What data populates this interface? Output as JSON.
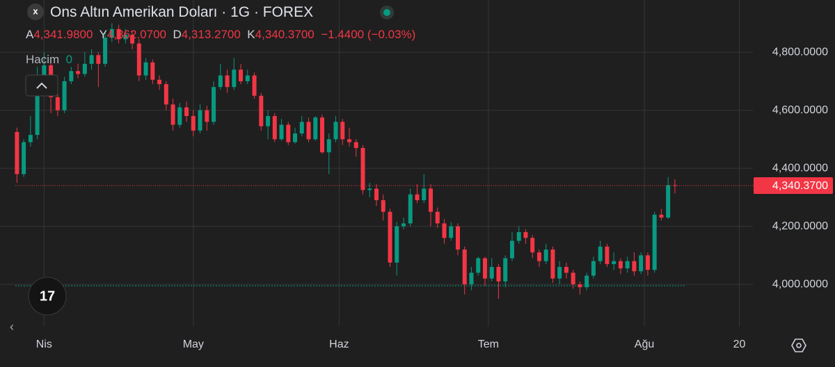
{
  "chart_data": {
    "type": "candlestick",
    "title": "Ons Altın Amerikan Doları · 1G · FOREX",
    "ohlc_legend": [
      {
        "name": "A",
        "value": {
          "value": 4341.98,
          "label": "4,341.9800"
        }
      },
      {
        "name": "Y",
        "value": {
          "value": 4362.07,
          "label": "4,362.0700"
        }
      },
      {
        "name": "D",
        "value": {
          "value": 4313.27,
          "label": "4,313.2700"
        }
      },
      {
        "name": "K",
        "value": {
          "value": 4340.37,
          "label": "4,340.3700"
        }
      }
    ],
    "change": {
      "value": -1.44,
      "label": "−1.4400"
    },
    "change_percent": {
      "value": -0.03,
      "label": "(−0.03%)"
    },
    "volume_label": "Hacim",
    "volume": 0,
    "last_price": {
      "value": 4340.37,
      "label": "4,340.3700"
    },
    "reference_line": 3995,
    "up_color": "#089981",
    "down_color": "#f23645",
    "grid": true,
    "xlim": [
      -2.5,
      108.5
    ],
    "xticks": [
      {
        "value": 4,
        "label": "Nis"
      },
      {
        "value": 26,
        "label": "May"
      },
      {
        "value": 47.5,
        "label": "Haz"
      },
      {
        "value": 69.5,
        "label": "Tem"
      },
      {
        "value": 92.5,
        "label": "Ağu"
      },
      {
        "value": 106.5,
        "label": "20"
      }
    ],
    "ylim": [
      3890,
      4980
    ],
    "yticks": [
      {
        "value": 4000,
        "label": "4,000.0000"
      },
      {
        "value": 4200,
        "label": "4,200.0000"
      },
      {
        "value": 4400,
        "label": "4,400.0000"
      },
      {
        "value": 4600,
        "label": "4,600.0000"
      },
      {
        "value": 4800,
        "label": "4,800.0000"
      }
    ],
    "x": [
      0,
      1,
      2,
      3,
      4,
      5,
      6,
      7,
      8,
      9,
      10,
      11,
      12,
      13,
      14,
      15,
      16,
      17,
      18,
      19,
      20,
      21,
      22,
      23,
      24,
      25,
      26,
      27,
      28,
      29,
      30,
      31,
      32,
      33,
      34,
      35,
      36,
      37,
      38,
      39,
      40,
      41,
      42,
      43,
      44,
      45,
      46,
      47,
      48,
      49,
      50,
      51,
      52,
      53,
      54,
      55,
      56,
      57,
      58,
      59,
      60,
      61,
      62,
      63,
      64,
      65,
      66,
      67,
      68,
      69,
      70,
      71,
      72,
      73,
      74,
      75,
      76,
      77,
      78,
      79,
      80,
      81,
      82,
      83,
      84,
      85,
      86,
      87,
      88,
      89,
      90,
      91,
      92,
      93,
      94,
      95,
      96,
      97
    ],
    "open": [
      4525,
      4380,
      4490,
      4515,
      4670,
      4755,
      4645,
      4600,
      4700,
      4735,
      4725,
      4760,
      4790,
      4760,
      4850,
      4880,
      4845,
      4860,
      4830,
      4720,
      4765,
      4705,
      4690,
      4620,
      4550,
      4610,
      4580,
      4530,
      4600,
      4560,
      4680,
      4720,
      4680,
      4740,
      4700,
      4720,
      4650,
      4545,
      4580,
      4500,
      4550,
      4490,
      4520,
      4560,
      4500,
      4575,
      4455,
      4500,
      4560,
      4500,
      4490,
      4470,
      4325,
      4330,
      4290,
      4250,
      4075,
      4200,
      4210,
      4310,
      4290,
      4330,
      4250,
      4210,
      4160,
      4200,
      4120,
      4000,
      4040,
      4090,
      4020,
      4060,
      4010,
      4090,
      4150,
      4180,
      4160,
      4110,
      4080,
      4120,
      4020,
      4060,
      4040,
      4000,
      3990,
      4030,
      4080,
      4130,
      4070,
      4080,
      4055,
      4080,
      4045,
      4100,
      4050,
      4240,
      4230,
      4341.98
    ],
    "high": [
      4540,
      4500,
      4580,
      4750,
      4800,
      4770,
      4660,
      4715,
      4750,
      4760,
      4800,
      4810,
      4800,
      4870,
      4900,
      4895,
      4880,
      4875,
      4845,
      4780,
      4775,
      4720,
      4700,
      4640,
      4625,
      4630,
      4600,
      4620,
      4615,
      4700,
      4760,
      4740,
      4780,
      4760,
      4740,
      4730,
      4660,
      4600,
      4590,
      4570,
      4560,
      4540,
      4580,
      4575,
      4580,
      4585,
      4520,
      4580,
      4570,
      4540,
      4500,
      4480,
      4350,
      4345,
      4310,
      4260,
      4215,
      4230,
      4330,
      4345,
      4380,
      4345,
      4265,
      4225,
      4215,
      4210,
      4130,
      4060,
      4095,
      4095,
      4090,
      4070,
      4100,
      4180,
      4200,
      4190,
      4170,
      4120,
      4140,
      4130,
      4080,
      4075,
      4050,
      4010,
      4040,
      4095,
      4150,
      4140,
      4110,
      4090,
      4095,
      4110,
      4110,
      4110,
      4250,
      4260,
      4370,
      4362.07
    ],
    "low": [
      4350,
      4370,
      4475,
      4500,
      4650,
      4590,
      4580,
      4590,
      4690,
      4710,
      4715,
      4740,
      4680,
      4750,
      4835,
      4830,
      4830,
      4810,
      4700,
      4705,
      4690,
      4670,
      4600,
      4530,
      4540,
      4560,
      4510,
      4520,
      4530,
      4550,
      4670,
      4660,
      4670,
      4690,
      4690,
      4640,
      4530,
      4500,
      4490,
      4495,
      4480,
      4485,
      4510,
      4490,
      4495,
      4450,
      4380,
      4490,
      4480,
      4475,
      4440,
      4310,
      4300,
      4270,
      4220,
      4060,
      4030,
      4190,
      4200,
      4280,
      4280,
      4200,
      4195,
      4140,
      4150,
      4100,
      3965,
      3980,
      4030,
      3995,
      4010,
      3950,
      3990,
      4080,
      4140,
      4140,
      4090,
      4060,
      4070,
      4005,
      4000,
      4020,
      3985,
      3965,
      3980,
      4020,
      4070,
      4060,
      4050,
      4035,
      4040,
      4030,
      4035,
      4030,
      4040,
      4220,
      4225,
      4313.27
    ],
    "close": [
      4380,
      4490,
      4515,
      4670,
      4755,
      4645,
      4600,
      4700,
      4735,
      4725,
      4760,
      4790,
      4760,
      4850,
      4880,
      4845,
      4860,
      4830,
      4720,
      4765,
      4705,
      4690,
      4620,
      4550,
      4610,
      4580,
      4530,
      4600,
      4560,
      4680,
      4720,
      4680,
      4740,
      4700,
      4720,
      4650,
      4545,
      4580,
      4500,
      4550,
      4490,
      4520,
      4560,
      4500,
      4575,
      4455,
      4500,
      4560,
      4500,
      4490,
      4470,
      4325,
      4330,
      4290,
      4250,
      4075,
      4200,
      4210,
      4310,
      4290,
      4330,
      4250,
      4210,
      4160,
      4200,
      4120,
      4000,
      4040,
      4090,
      4020,
      4060,
      4010,
      4090,
      4150,
      4180,
      4160,
      4110,
      4080,
      4120,
      4020,
      4060,
      4040,
      4000,
      3990,
      4030,
      4080,
      4130,
      4070,
      4080,
      4055,
      4080,
      4045,
      4100,
      4050,
      4240,
      4230,
      4341.98,
      4340.37
    ]
  }
}
